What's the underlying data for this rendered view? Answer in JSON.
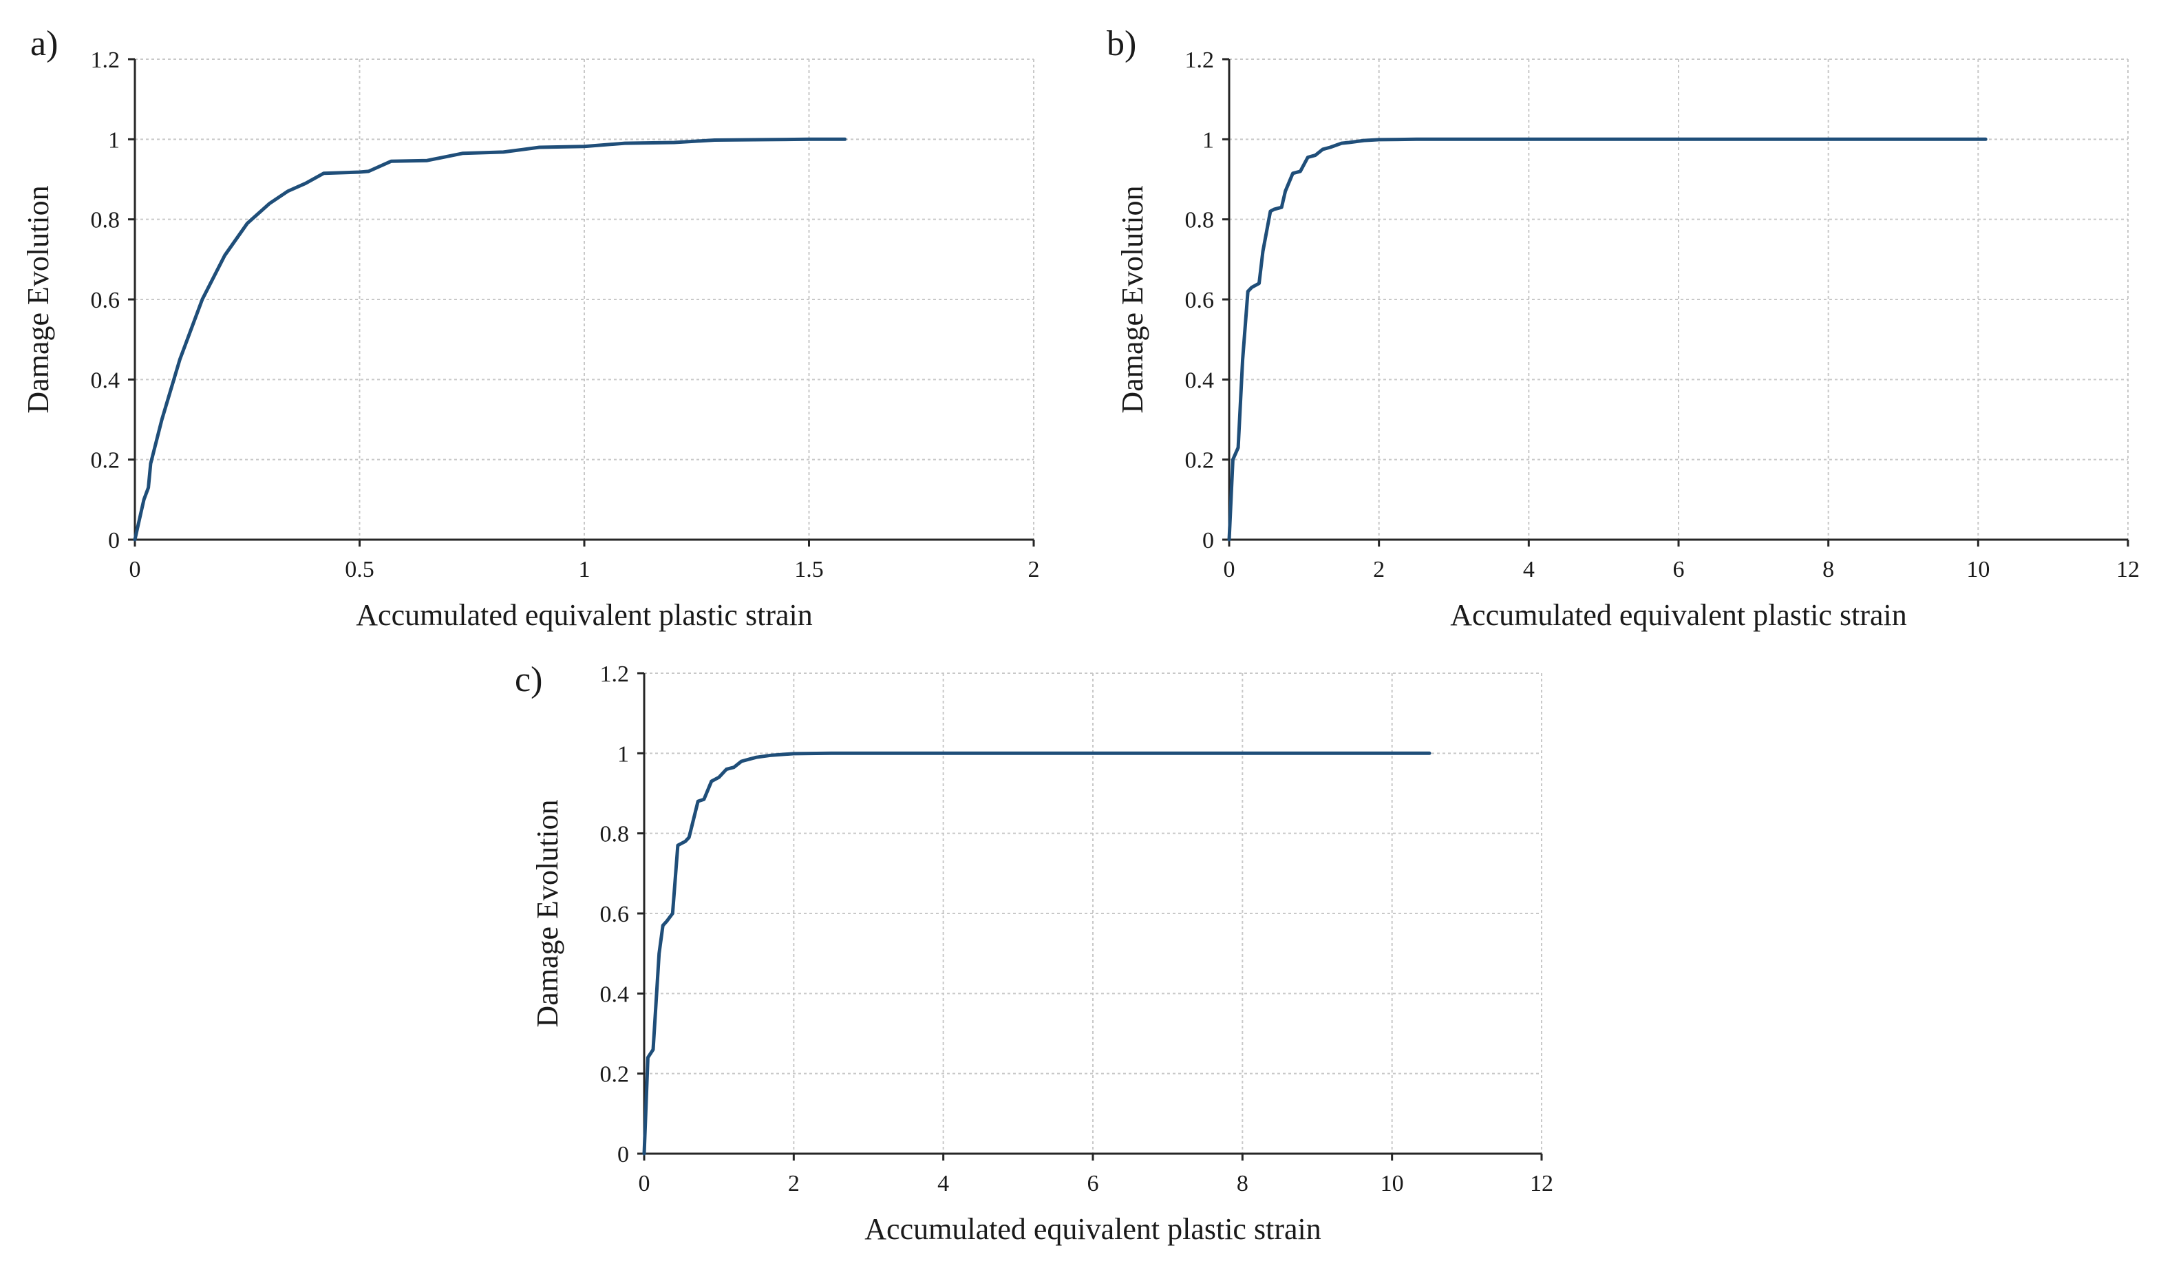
{
  "figure": {
    "background": "#ffffff",
    "line_color": "#1f4e79",
    "axis_color": "#262626",
    "grid_color": "#c8c8c8"
  },
  "chart_data": [
    {
      "panel_label": "a)",
      "type": "line",
      "xlabel": "Accumulated equivalent plastic strain",
      "ylabel": "Damage Evolution",
      "xlim": [
        0,
        2
      ],
      "ylim": [
        0,
        1.2
      ],
      "x_ticks": [
        0,
        0.5,
        1,
        1.5,
        2
      ],
      "x_tick_labels": [
        "0",
        "0.5",
        "1",
        "1.5",
        "2"
      ],
      "y_ticks": [
        0,
        0.2,
        0.4,
        0.6,
        0.8,
        1,
        1.2
      ],
      "y_tick_labels": [
        "0",
        "0.2",
        "0.4",
        "0.6",
        "0.8",
        "1",
        "1.2"
      ],
      "grid": true,
      "legend": "none",
      "series": [
        {
          "x": [
            0,
            0.01,
            0.02,
            0.03,
            0.035,
            0.06,
            0.1,
            0.15,
            0.2,
            0.25,
            0.3,
            0.34,
            0.38,
            0.42,
            0.5,
            0.52,
            0.57,
            0.65,
            0.73,
            0.82,
            0.9,
            1.0,
            1.09,
            1.2,
            1.29,
            1.4,
            1.5,
            1.58
          ],
          "y": [
            0,
            0.05,
            0.1,
            0.13,
            0.19,
            0.3,
            0.45,
            0.6,
            0.71,
            0.79,
            0.84,
            0.87,
            0.89,
            0.915,
            0.918,
            0.92,
            0.945,
            0.947,
            0.965,
            0.968,
            0.98,
            0.982,
            0.99,
            0.992,
            0.998,
            0.999,
            1.0,
            1.0
          ]
        }
      ]
    },
    {
      "panel_label": "b)",
      "type": "line",
      "xlabel": "Accumulated equivalent plastic strain",
      "ylabel": "Damage Evolution",
      "xlim": [
        0,
        12
      ],
      "ylim": [
        0,
        1.2
      ],
      "x_ticks": [
        0,
        2,
        4,
        6,
        8,
        10,
        12
      ],
      "x_tick_labels": [
        "0",
        "2",
        "4",
        "6",
        "8",
        "10",
        "12"
      ],
      "y_ticks": [
        0,
        0.2,
        0.4,
        0.6,
        0.8,
        1,
        1.2
      ],
      "y_tick_labels": [
        "0",
        "0.2",
        "0.4",
        "0.6",
        "0.8",
        "1",
        "1.2"
      ],
      "grid": true,
      "legend": "none",
      "series": [
        {
          "x": [
            0,
            0.05,
            0.12,
            0.18,
            0.25,
            0.3,
            0.4,
            0.45,
            0.55,
            0.6,
            0.7,
            0.75,
            0.85,
            0.95,
            1.05,
            1.15,
            1.25,
            1.35,
            1.5,
            1.6,
            1.8,
            2.0,
            2.5,
            3.0,
            4.0,
            6.0,
            8.0,
            10.1
          ],
          "y": [
            0,
            0.2,
            0.23,
            0.45,
            0.62,
            0.63,
            0.64,
            0.72,
            0.82,
            0.825,
            0.83,
            0.87,
            0.915,
            0.92,
            0.955,
            0.96,
            0.975,
            0.98,
            0.99,
            0.992,
            0.997,
            0.999,
            1.0,
            1.0,
            1.0,
            1.0,
            1.0,
            1.0
          ]
        }
      ]
    },
    {
      "panel_label": "c)",
      "type": "line",
      "xlabel": "Accumulated equivalent plastic strain",
      "ylabel": "Damage Evolution",
      "xlim": [
        0,
        12
      ],
      "ylim": [
        0,
        1.2
      ],
      "x_ticks": [
        0,
        2,
        4,
        6,
        8,
        10,
        12
      ],
      "x_tick_labels": [
        "0",
        "2",
        "4",
        "6",
        "8",
        "10",
        "12"
      ],
      "y_ticks": [
        0,
        0.2,
        0.4,
        0.6,
        0.8,
        1,
        1.2
      ],
      "y_tick_labels": [
        "0",
        "0.2",
        "0.4",
        "0.6",
        "0.8",
        "1",
        "1.2"
      ],
      "grid": true,
      "legend": "none",
      "series": [
        {
          "x": [
            0,
            0.05,
            0.12,
            0.2,
            0.25,
            0.3,
            0.38,
            0.45,
            0.55,
            0.6,
            0.72,
            0.8,
            0.9,
            1.0,
            1.1,
            1.2,
            1.3,
            1.4,
            1.5,
            1.7,
            2.0,
            2.5,
            3.0,
            4.0,
            6.0,
            8.0,
            10.5
          ],
          "y": [
            0,
            0.24,
            0.26,
            0.5,
            0.57,
            0.58,
            0.6,
            0.77,
            0.78,
            0.79,
            0.88,
            0.885,
            0.93,
            0.94,
            0.96,
            0.965,
            0.98,
            0.985,
            0.99,
            0.995,
            0.999,
            1.0,
            1.0,
            1.0,
            1.0,
            1.0,
            1.0
          ]
        }
      ]
    }
  ]
}
